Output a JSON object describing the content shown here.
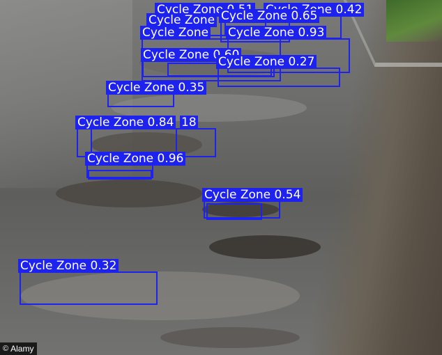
{
  "photo": {
    "credit": "Alamy",
    "credit_symbol": "©",
    "box_color": "#1e22ee"
  },
  "detections": [
    {
      "label": "Cycle Zone 0.51"
    },
    {
      "label": "Cycle Zone 0.42"
    },
    {
      "label": "Cycle Zone 0.65"
    },
    {
      "label": "Cycle Zone"
    },
    {
      "label": "Cycle Zone 0.93"
    },
    {
      "label": "Cycle Zone 0.60"
    },
    {
      "label": "Cycle Zone 0.27"
    },
    {
      "label": "Cycle Zone 0.35"
    },
    {
      "label": "Cycle Zone 0.84"
    },
    {
      "label": "Cycle Zone 0.96"
    },
    {
      "label": "Cycle Zone 0.54"
    },
    {
      "label": "Cycle Zone 0.32"
    }
  ]
}
